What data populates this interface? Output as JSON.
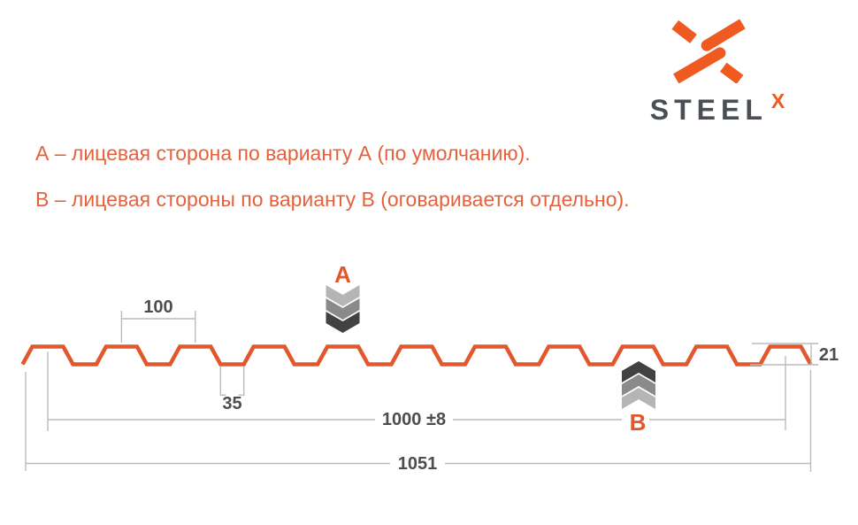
{
  "logo": {
    "brand": "STEEL",
    "brand_sup": "X"
  },
  "notes": {
    "line_a": "А – лицевая сторона по варианту А (по умолчанию).",
    "line_b": "B – лицевая стороны по варианту B (оговаривается отдельно)."
  },
  "diagram": {
    "marker_a": "А",
    "marker_b": "B",
    "dims": {
      "pitch": "100",
      "valley_width": "35",
      "cover_width": "1000 ±8",
      "overall_width": "1051",
      "height": "21"
    }
  },
  "colors": {
    "profile_orange": "#E2582C",
    "note_orange": "#E5613C",
    "logo_orange": "#EE5A20",
    "brand_gray": "#4A4F55",
    "dim_line_gray": "#BBBBBB",
    "dim_text_gray": "#4D4D4D",
    "chevron_light": "#B5B5B5",
    "chevron_mid": "#8A8A8A",
    "chevron_dark": "#424242"
  }
}
